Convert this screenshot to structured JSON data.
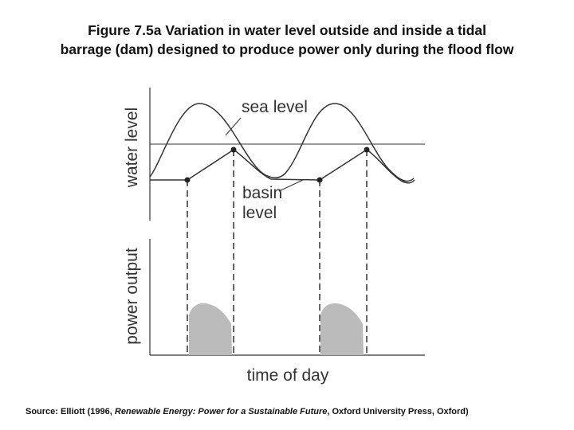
{
  "figure": {
    "title_line1": "Figure 7.5a Variation in water level outside and inside a tidal",
    "title_line2": "barrage (dam) designed to produce power only during the flood flow"
  },
  "diagram": {
    "top_ylabel": "water level",
    "bottom_ylabel": "power output",
    "xlabel": "time of day",
    "sea_level_label": "sea level",
    "basin_label_line1": "basin",
    "basin_label_line2": "level"
  },
  "source": {
    "prefix": "Source: Elliott (1996, ",
    "book_title": "Renewable Energy: Power for a Sustainable Future",
    "suffix": ", Oxford University Press, Oxford)"
  },
  "colors": {
    "curve": "#333333",
    "power_fill": "#bbbbbb",
    "marker": "#222222",
    "text": "#111111"
  }
}
